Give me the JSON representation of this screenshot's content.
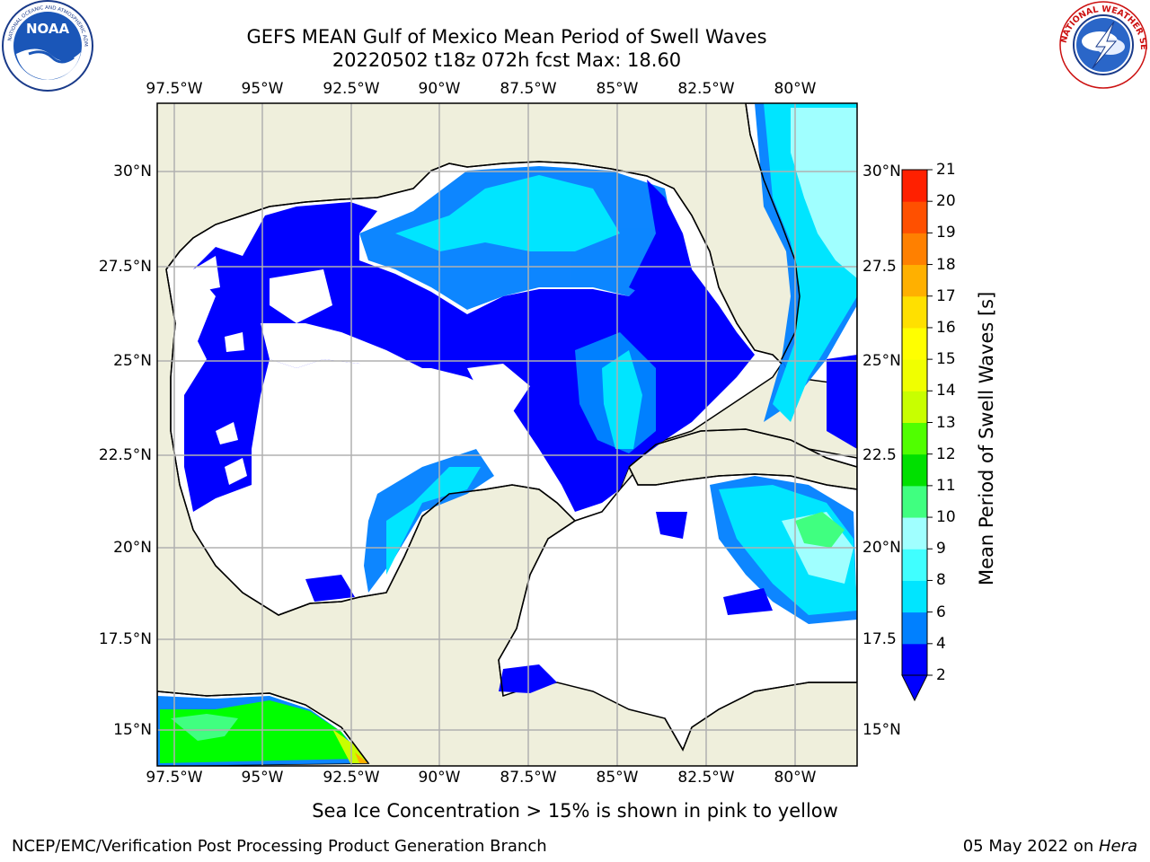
{
  "header": {
    "title_line1": "GEFS MEAN Gulf of Mexico Mean Period of Swell Waves",
    "title_line2": "20220502 t18z 072h fcst   Max: 18.60"
  },
  "logos": {
    "left": {
      "icon": "noaa-logo-icon",
      "inner_text": "NOAA"
    },
    "right": {
      "icon": "nws-logo-icon",
      "ring_text": "NATIONAL WEATHER SERVICE"
    }
  },
  "map": {
    "lon_ticks": [
      "97.5°W",
      "95°W",
      "92.5°W",
      "90°W",
      "87.5°W",
      "85°W",
      "82.5°W",
      "80°W"
    ],
    "lat_ticks_left": [
      "30°N",
      "27.5°N",
      "25°N",
      "22.5°N",
      "20°N",
      "17.5°N",
      "15°N"
    ],
    "lat_ticks_right": [
      "30°N",
      "27.5",
      "25°N",
      "22.5",
      "20°N",
      "17.5",
      "15°N"
    ],
    "land_color": "#efefdc",
    "ocean_color": "#ffffff",
    "grid_color": "#b0b0b0"
  },
  "colorbar": {
    "title": "Mean Period of Swell Waves [s]",
    "labels": [
      "2",
      "4",
      "6",
      "8",
      "9",
      "10",
      "11",
      "12",
      "13",
      "14",
      "15",
      "16",
      "17",
      "18",
      "19",
      "20",
      "21"
    ],
    "colors": [
      "#0000ff",
      "#0080ff",
      "#00e5ff",
      "#40ffff",
      "#a0ffff",
      "#40ff80",
      "#00e000",
      "#50ff00",
      "#c8ff00",
      "#f0ff00",
      "#ffff00",
      "#ffe000",
      "#ffb000",
      "#ff8000",
      "#ff5000",
      "#ff2000",
      "#ff0000"
    ]
  },
  "notes": {
    "sea_ice": "Sea Ice Concentration > 15% is shown in pink to yellow"
  },
  "footer": {
    "left": "NCEP/EMC/Verification Post Processing Product Generation Branch",
    "right_prefix": "05 May 2022 on ",
    "right_italic": "Hera"
  }
}
